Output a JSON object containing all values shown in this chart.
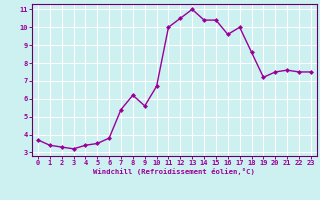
{
  "x": [
    0,
    1,
    2,
    3,
    4,
    5,
    6,
    7,
    8,
    9,
    10,
    11,
    12,
    13,
    14,
    15,
    16,
    17,
    18,
    19,
    20,
    21,
    22,
    23
  ],
  "y": [
    3.7,
    3.4,
    3.3,
    3.2,
    3.4,
    3.5,
    3.8,
    5.4,
    6.2,
    5.6,
    6.7,
    10.0,
    10.5,
    11.0,
    10.4,
    10.4,
    9.6,
    10.0,
    8.6,
    7.2,
    7.5,
    7.6,
    7.5,
    7.5
  ],
  "line_color": "#990099",
  "marker": "D",
  "marker_size": 2.0,
  "bg_color": "#cdf0f0",
  "grid_color": "#ffffff",
  "xlabel": "Windchill (Refroidissement éolien,°C)",
  "xlabel_color": "#990099",
  "tick_color": "#990099",
  "spine_color": "#660066",
  "ylim": [
    2.8,
    11.3
  ],
  "xlim": [
    -0.5,
    23.5
  ],
  "yticks": [
    3,
    4,
    5,
    6,
    7,
    8,
    9,
    10,
    11
  ],
  "xticks": [
    0,
    1,
    2,
    3,
    4,
    5,
    6,
    7,
    8,
    9,
    10,
    11,
    12,
    13,
    14,
    15,
    16,
    17,
    18,
    19,
    20,
    21,
    22,
    23
  ],
  "tick_fontsize": 5.0,
  "xlabel_fontsize": 5.2,
  "linewidth": 1.0
}
